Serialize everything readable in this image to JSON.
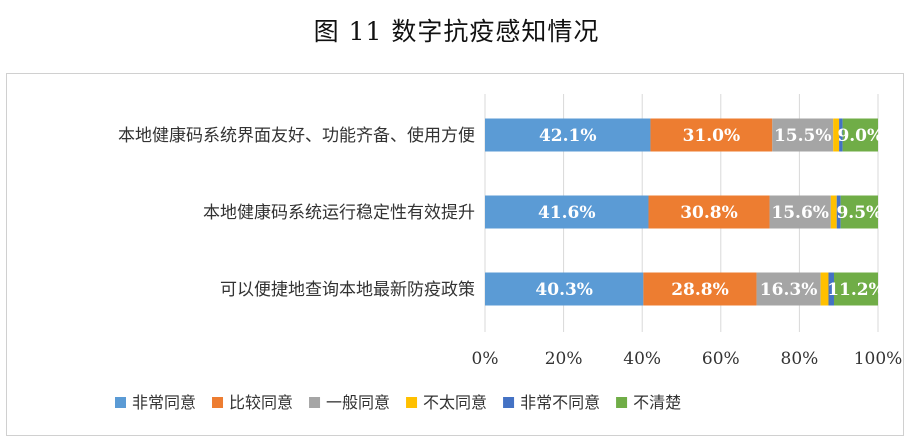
{
  "page": {
    "title": "图 11  数字抗疫感知情况"
  },
  "chart_data": {
    "type": "bar",
    "orientation": "horizontal",
    "stacked": "percent",
    "title": "",
    "xlabel": "",
    "ylabel": "",
    "xlim": [
      0,
      100
    ],
    "x_ticks": [
      "0%",
      "20%",
      "40%",
      "60%",
      "80%",
      "100%"
    ],
    "grid": "vertical",
    "legend_position": "bottom",
    "categories": [
      "本地健康码系统界面友好、功能齐备、使用方便",
      "本地健康码系统运行稳定性有效提升",
      "可以便捷地查询本地最新防疫政策"
    ],
    "series": [
      {
        "name": "非常同意",
        "color": "#5b9bd5",
        "values": [
          42.1,
          41.6,
          40.3
        ],
        "labels": [
          "42.1%",
          "41.6%",
          "40.3%"
        ]
      },
      {
        "name": "比较同意",
        "color": "#ed7d31",
        "values": [
          31.0,
          30.8,
          28.8
        ],
        "labels": [
          "31.0%",
          "30.8%",
          "28.8%"
        ]
      },
      {
        "name": "一般同意",
        "color": "#a5a5a5",
        "values": [
          15.5,
          15.6,
          16.3
        ],
        "labels": [
          "15.5%",
          "15.6%",
          "16.3%"
        ]
      },
      {
        "name": "不太同意",
        "color": "#ffc000",
        "values": [
          1.5,
          1.5,
          2.0
        ],
        "labels": [
          "",
          "",
          ""
        ]
      },
      {
        "name": "非常不同意",
        "color": "#4472c4",
        "values": [
          0.9,
          1.0,
          1.4
        ],
        "labels": [
          "",
          "",
          ""
        ]
      },
      {
        "name": "不清楚",
        "color": "#70ad47",
        "values": [
          9.0,
          9.5,
          11.2
        ],
        "labels": [
          "9.0%",
          "9.5%",
          "11.2%"
        ]
      }
    ]
  }
}
